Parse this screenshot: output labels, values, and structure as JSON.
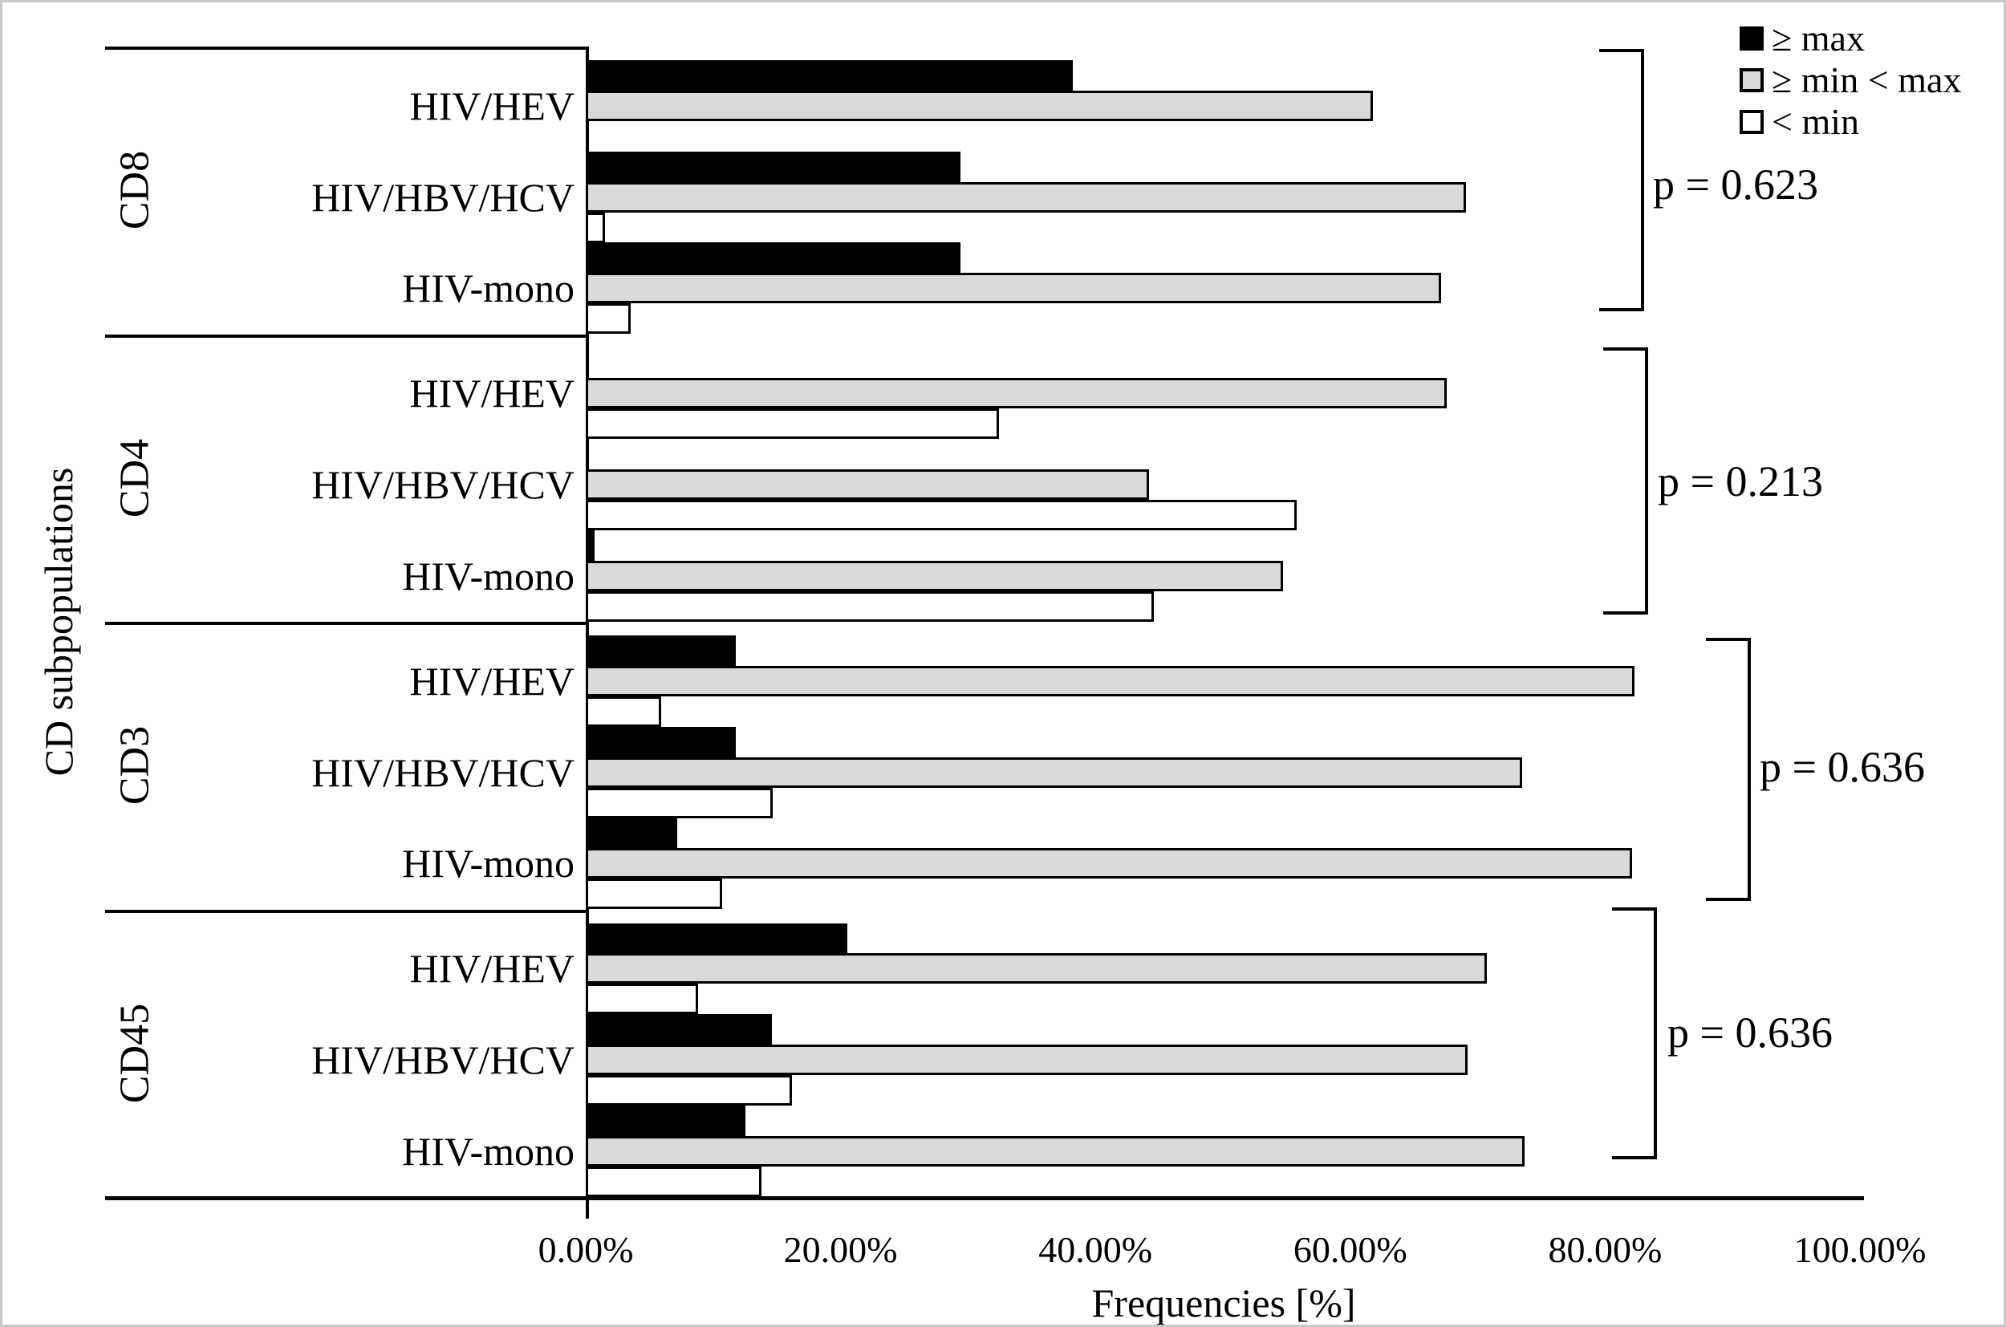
{
  "axis": {
    "x_title": "Frequencies [%]",
    "y_title": "CD subpopulations",
    "x_ticks": [
      "0.00%",
      "20.00%",
      "40.00%",
      "60.00%",
      "80.00%",
      "100.00%"
    ],
    "x_tick_values": [
      0,
      20,
      40,
      60,
      80,
      100
    ]
  },
  "legend": {
    "items": [
      {
        "label": "≥ max",
        "swatch": "max",
        "color": "#000000"
      },
      {
        "label": "≥ min < max",
        "swatch": "mid",
        "color": "#d9d9d9"
      },
      {
        "label": "< min",
        "swatch": "min",
        "color": "#ffffff"
      }
    ]
  },
  "chart_data": {
    "type": "bar",
    "orientation": "horizontal",
    "unit": "percent",
    "xlim": [
      0,
      100
    ],
    "xlabel": "Frequencies [%]",
    "ylabel": "CD subpopulations",
    "grid": false,
    "legend_position": "top-right",
    "series_names": [
      "≥ max",
      "≥ min < max",
      "< min"
    ],
    "series_keys": [
      "max",
      "mid",
      "min"
    ],
    "colors": {
      "max": "#000000",
      "mid": "#d9d9d9",
      "min": "#ffffff"
    },
    "groups": [
      {
        "label": "CD8",
        "p_value": "p = 0.623",
        "rows": [
          {
            "label": "HIV/HEV",
            "values": {
              "max": 38.2,
              "mid": 61.8,
              "min": 0
            }
          },
          {
            "label": "HIV/HBV/HCV",
            "values": {
              "max": 29.4,
              "mid": 69.1,
              "min": 1.5
            }
          },
          {
            "label": "HIV-mono",
            "values": {
              "max": 29.4,
              "mid": 67.1,
              "min": 3.5
            }
          }
        ]
      },
      {
        "label": "CD4",
        "p_value": "p = 0.213",
        "rows": [
          {
            "label": "HIV/HEV",
            "values": {
              "max": 0,
              "mid": 67.6,
              "min": 32.4
            }
          },
          {
            "label": "HIV/HBV/HCV",
            "values": {
              "max": 0,
              "mid": 44.2,
              "min": 55.8
            }
          },
          {
            "label": "HIV-mono",
            "values": {
              "max": 0.7,
              "mid": 54.7,
              "min": 44.6
            }
          }
        ]
      },
      {
        "label": "CD3",
        "p_value": "p = 0.636",
        "rows": [
          {
            "label": "HIV/HEV",
            "values": {
              "max": 11.8,
              "mid": 82.3,
              "min": 5.9
            }
          },
          {
            "label": "HIV/HBV/HCV",
            "values": {
              "max": 11.8,
              "mid": 73.5,
              "min": 14.7
            }
          },
          {
            "label": "HIV-mono",
            "values": {
              "max": 7.2,
              "mid": 82.1,
              "min": 10.7
            }
          }
        ]
      },
      {
        "label": "CD45",
        "p_value": "p = 0.636",
        "rows": [
          {
            "label": "HIV/HEV",
            "values": {
              "max": 20.5,
              "mid": 70.7,
              "min": 8.8
            }
          },
          {
            "label": "HIV/HBV/HCV",
            "values": {
              "max": 14.6,
              "mid": 69.2,
              "min": 16.2
            }
          },
          {
            "label": "HIV-mono",
            "values": {
              "max": 12.5,
              "mid": 73.7,
              "min": 13.8
            }
          }
        ]
      }
    ]
  }
}
